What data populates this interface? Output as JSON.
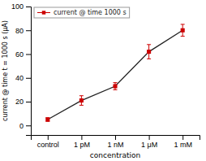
{
  "chart_data": {
    "type": "line",
    "xlabel": "concentration",
    "ylabel": "current @ time t = 1000 s (μA)",
    "categories": [
      "control",
      "1 pM",
      "1 nM",
      "1 μM",
      "1 mM"
    ],
    "series": [
      {
        "name": "current @ time 1000 s",
        "color": "#cc0000",
        "marker": "square",
        "values": [
          5,
          21,
          33,
          62,
          80
        ],
        "errors": [
          1.5,
          4,
          3,
          6,
          5
        ]
      }
    ],
    "ylim": [
      -8,
      100
    ],
    "yticks": [
      0,
      20,
      40,
      60,
      80,
      100
    ],
    "grid": false,
    "legend": "upper left"
  }
}
